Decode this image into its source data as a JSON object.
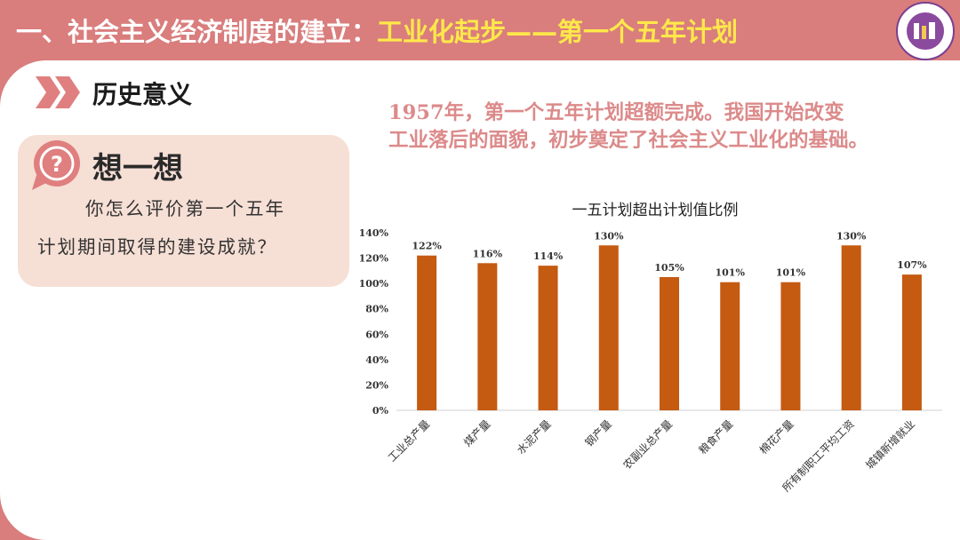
{
  "header": {
    "title_main": "一、社会主义经济制度的建立：",
    "title_highlight": "工业化起步——第一个五年计划",
    "logo_icon": "school-logo-icon"
  },
  "section": {
    "title": "历史意义",
    "arrow_icon": "double-chevron-right-icon"
  },
  "quote": {
    "line1": "1957年，第一个五年计划超额完成。我国开始改变",
    "line2": "工业落后的面貌，初步奠定了社会主义工业化的基础。"
  },
  "think_card": {
    "title": "想一想",
    "icon": "question-bubble-icon",
    "line1": "你怎么评价第一个五年",
    "line2": "计划期间取得的建设成就？"
  },
  "colors": {
    "header_bg": "#d97d7d",
    "highlight": "#ffe84a",
    "quote_text": "#dc8a8a",
    "card_bg": "#f6dfd5",
    "bar": "#c55a11"
  },
  "chart_data": {
    "type": "bar",
    "title": "一五计划超出计划值比例",
    "categories": [
      "工业总产量",
      "煤产量",
      "水泥产量",
      "钢产量",
      "农副业总产量",
      "粮食产量",
      "棉花产量",
      "所有制职工平均工资",
      "城镇新增就业"
    ],
    "values": [
      122,
      116,
      114,
      130,
      105,
      101,
      101,
      130,
      107
    ],
    "data_labels": [
      "122%",
      "116%",
      "114%",
      "130%",
      "105%",
      "101%",
      "101%",
      "130%",
      "107%"
    ],
    "y_ticks": [
      "0%",
      "20%",
      "40%",
      "60%",
      "80%",
      "100%",
      "120%",
      "140%"
    ],
    "ylim": [
      0,
      140
    ],
    "grid": false,
    "legend": "none"
  }
}
